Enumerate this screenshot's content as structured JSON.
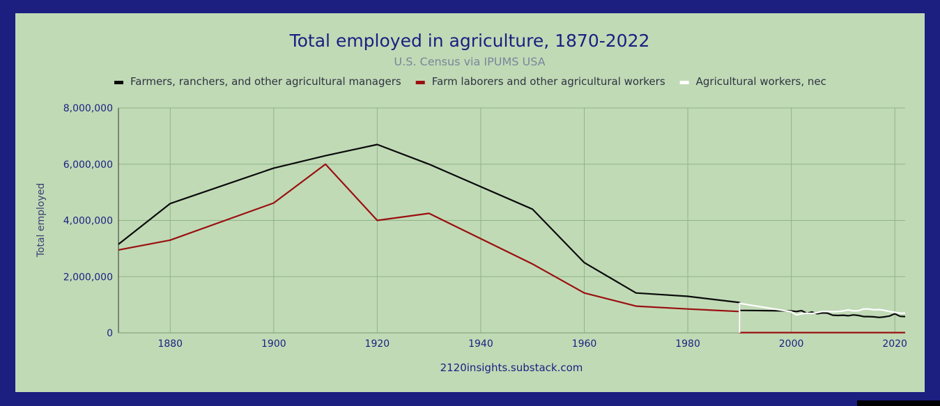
{
  "chart_data": {
    "type": "line",
    "title": "Total employed in agriculture, 1870-2022",
    "subtitle": "U.S. Census via IPUMS USA",
    "ylabel": "Total employed",
    "source_label": "2120insights.substack.com",
    "xlim": [
      1870,
      2022
    ],
    "ylim": [
      0,
      8000000
    ],
    "x_ticks": [
      1880,
      1900,
      1920,
      1940,
      1960,
      1980,
      2000,
      2020
    ],
    "y_ticks": [
      0,
      2000000,
      4000000,
      6000000,
      8000000
    ],
    "y_tick_labels": [
      "0",
      "2,000,000",
      "4,000,000",
      "6,000,000",
      "8,000,000"
    ],
    "grid": true,
    "legend_position": "top",
    "background_color": "#c0dab6",
    "frame_color": "#1c1e80",
    "series": [
      {
        "name": "Farmers, ranchers, and other agricultural managers",
        "color": "#0a0a0a",
        "points": [
          [
            1870,
            3150000
          ],
          [
            1880,
            4600000
          ],
          [
            1900,
            5860000
          ],
          [
            1910,
            6300000
          ],
          [
            1920,
            6700000
          ],
          [
            1930,
            6000000
          ],
          [
            1950,
            4400000
          ],
          [
            1960,
            2500000
          ],
          [
            1970,
            1420000
          ],
          [
            1980,
            1300000
          ],
          [
            1990,
            1080000
          ],
          [
            1990,
            800000
          ],
          [
            2000,
            780000
          ],
          [
            2001,
            760000
          ],
          [
            2002,
            790000
          ],
          [
            2003,
            700000
          ],
          [
            2004,
            740000
          ],
          [
            2005,
            680000
          ],
          [
            2006,
            710000
          ],
          [
            2007,
            700000
          ],
          [
            2008,
            630000
          ],
          [
            2009,
            620000
          ],
          [
            2010,
            630000
          ],
          [
            2011,
            610000
          ],
          [
            2012,
            640000
          ],
          [
            2013,
            620000
          ],
          [
            2014,
            580000
          ],
          [
            2015,
            580000
          ],
          [
            2016,
            570000
          ],
          [
            2017,
            550000
          ],
          [
            2018,
            570000
          ],
          [
            2019,
            600000
          ],
          [
            2020,
            680000
          ],
          [
            2021,
            590000
          ],
          [
            2022,
            580000
          ]
        ]
      },
      {
        "name": "Farm laborers and other agricultural workers",
        "color": "#9a0f0f",
        "points": [
          [
            1870,
            2950000
          ],
          [
            1880,
            3300000
          ],
          [
            1900,
            4620000
          ],
          [
            1910,
            6000000
          ],
          [
            1920,
            4000000
          ],
          [
            1930,
            4250000
          ],
          [
            1950,
            2450000
          ],
          [
            1960,
            1420000
          ],
          [
            1970,
            950000
          ],
          [
            1980,
            850000
          ],
          [
            1990,
            760000
          ],
          [
            1990,
            10000
          ],
          [
            2022,
            10000
          ]
        ]
      },
      {
        "name": "Agricultural workers, nec",
        "color": "#ffffff",
        "points": [
          [
            1990,
            0
          ],
          [
            1990,
            1050000
          ],
          [
            2000,
            750000
          ],
          [
            2001,
            640000
          ],
          [
            2002,
            680000
          ],
          [
            2003,
            700000
          ],
          [
            2004,
            690000
          ],
          [
            2005,
            720000
          ],
          [
            2006,
            760000
          ],
          [
            2007,
            760000
          ],
          [
            2008,
            750000
          ],
          [
            2009,
            760000
          ],
          [
            2010,
            780000
          ],
          [
            2011,
            820000
          ],
          [
            2012,
            780000
          ],
          [
            2013,
            790000
          ],
          [
            2014,
            850000
          ],
          [
            2015,
            850000
          ],
          [
            2016,
            820000
          ],
          [
            2017,
            830000
          ],
          [
            2018,
            800000
          ],
          [
            2019,
            760000
          ],
          [
            2020,
            730000
          ],
          [
            2021,
            700000
          ],
          [
            2022,
            700000
          ]
        ]
      }
    ]
  }
}
